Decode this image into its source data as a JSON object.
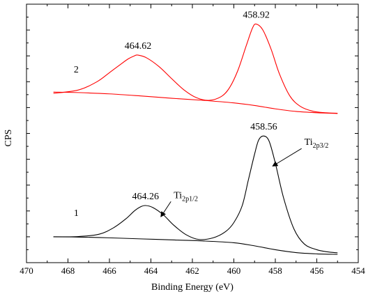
{
  "chart_data": {
    "type": "line",
    "title": "",
    "xlabel": "Binding Energy (eV)",
    "ylabel": "CPS",
    "x_reversed": true,
    "xlim": [
      470,
      454
    ],
    "ylim": [
      0,
      100
    ],
    "grid": false,
    "xticks": [
      "470",
      "468",
      "466",
      "464",
      "462",
      "460",
      "458",
      "456",
      "454"
    ],
    "colors": {
      "curve1": "#000000",
      "curve2": "#ff0000"
    },
    "series": [
      {
        "label": "2",
        "color": "#ff0000",
        "baseline_x": [
          468.7,
          467.5,
          466.0,
          464.5,
          463.0,
          461.5,
          460.0,
          459.0,
          458.0,
          457.0,
          456.0,
          455.0
        ],
        "baseline_y": [
          66.0,
          65.8,
          65.3,
          64.5,
          63.6,
          62.8,
          61.8,
          60.8,
          59.5,
          58.5,
          58.0,
          57.7
        ],
        "peaks": [
          {
            "center": 464.62,
            "label": "464.62"
          },
          {
            "center": 458.92,
            "label": "458.92"
          }
        ],
        "envelope_x": [
          468.7,
          467.5,
          466.6,
          466.0,
          465.5,
          465.1,
          464.8,
          464.62,
          464.2,
          463.6,
          463.0,
          462.4,
          461.8,
          461.2,
          460.6,
          460.2,
          459.8,
          459.4,
          459.1,
          458.92,
          458.6,
          458.2,
          457.8,
          457.3,
          456.8,
          456.2,
          455.6,
          455.0
        ],
        "envelope_y": [
          65.5,
          66.8,
          70.0,
          73.5,
          76.5,
          78.8,
          80.0,
          80.3,
          79.2,
          75.8,
          71.2,
          66.8,
          63.8,
          62.8,
          64.3,
          67.8,
          74.5,
          84.0,
          90.8,
          92.3,
          90.0,
          82.5,
          73.0,
          64.5,
          60.5,
          58.6,
          58.0,
          57.8
        ]
      },
      {
        "label": "1",
        "color": "#000000",
        "baseline_x": [
          468.7,
          467.5,
          466.0,
          464.5,
          463.0,
          461.5,
          460.0,
          459.0,
          458.0,
          457.0,
          456.0,
          455.0
        ],
        "baseline_y": [
          10.0,
          9.9,
          9.6,
          9.2,
          8.8,
          8.4,
          7.7,
          6.5,
          5.0,
          3.9,
          3.4,
          3.2
        ],
        "peaks": [
          {
            "center": 464.26,
            "label": "464.26"
          },
          {
            "center": 458.56,
            "label": "458.56"
          }
        ],
        "envelope_x": [
          468.7,
          467.5,
          466.5,
          465.8,
          465.2,
          464.8,
          464.5,
          464.26,
          463.9,
          463.4,
          462.9,
          462.3,
          461.7,
          461.0,
          460.4,
          460.0,
          459.6,
          459.3,
          459.0,
          458.8,
          458.56,
          458.3,
          458.0,
          457.6,
          457.1,
          456.6,
          456.0,
          455.5,
          455.0
        ],
        "envelope_y": [
          10.0,
          10.1,
          11.0,
          13.5,
          17.0,
          20.0,
          21.6,
          22.1,
          21.3,
          18.5,
          14.5,
          10.8,
          9.0,
          9.6,
          12.0,
          15.5,
          22.0,
          32.0,
          42.0,
          47.5,
          49.0,
          47.0,
          38.5,
          25.0,
          13.0,
          7.2,
          5.0,
          4.2,
          3.8
        ]
      }
    ],
    "annotations": [
      {
        "text": "Ti",
        "sub": "2p3/2",
        "x": 456.6,
        "y": 45.5,
        "arrow_to_x": 458.1,
        "arrow_to_y": 37.5
      },
      {
        "text": "Ti",
        "sub": "2p1/2",
        "x": 462.9,
        "y": 25.0,
        "arrow_to_x": 463.5,
        "arrow_to_y": 18.0
      }
    ]
  }
}
